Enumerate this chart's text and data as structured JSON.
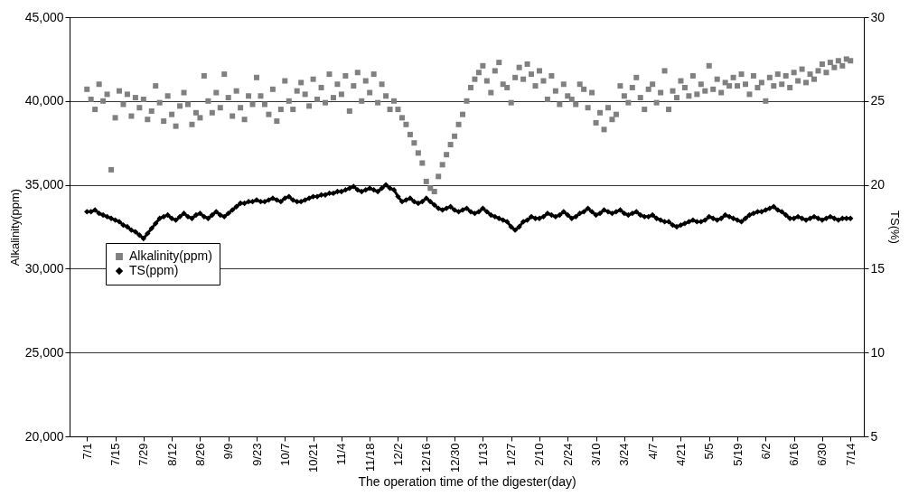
{
  "chart_data": {
    "type": "scatter",
    "xlabel": "The operation time of the digester(day)",
    "ylabel": "Alkalinity(ppm)",
    "y2label": "TS(%)",
    "categories": [
      "7/1",
      null,
      null,
      null,
      null,
      null,
      null,
      "7/15",
      null,
      null,
      null,
      null,
      null,
      null,
      "7/29",
      null,
      null,
      null,
      null,
      null,
      null,
      "8/12",
      null,
      null,
      null,
      null,
      null,
      null,
      "8/26",
      null,
      null,
      null,
      null,
      null,
      null,
      "9/9",
      null,
      null,
      null,
      null,
      null,
      null,
      "9/23",
      null,
      null,
      null,
      null,
      null,
      null,
      "10/7",
      null,
      null,
      null,
      null,
      null,
      null,
      "10/21",
      null,
      null,
      null,
      null,
      null,
      null,
      "11/4",
      null,
      null,
      null,
      null,
      null,
      null,
      "11/18",
      null,
      null,
      null,
      null,
      null,
      null,
      "12/2",
      null,
      null,
      null,
      null,
      null,
      null,
      "12/16",
      null,
      null,
      null,
      null,
      null,
      null,
      "12/30",
      null,
      null,
      null,
      null,
      null,
      null,
      "1/13",
      null,
      null,
      null,
      null,
      null,
      null,
      "1/27",
      null,
      null,
      null,
      null,
      null,
      null,
      "2/10",
      null,
      null,
      null,
      null,
      null,
      null,
      "2/24",
      null,
      null,
      null,
      null,
      null,
      null,
      "3/10",
      null,
      null,
      null,
      null,
      null,
      null,
      "3/24",
      null,
      null,
      null,
      null,
      null,
      null,
      "4/7",
      null,
      null,
      null,
      null,
      null,
      null,
      "4/21",
      null,
      null,
      null,
      null,
      null,
      null,
      "5/5",
      null,
      null,
      null,
      null,
      null,
      null,
      "5/19",
      null,
      null,
      null,
      null,
      null,
      null,
      "6/2",
      null,
      null,
      null,
      null,
      null,
      null,
      "6/16",
      null,
      null,
      null,
      null,
      null,
      null,
      "6/30",
      null,
      null,
      null,
      null,
      null,
      null,
      "7/14"
    ],
    "ylim": [
      20000,
      45000
    ],
    "yticks": [
      {
        "value": 20000,
        "label": "20,000"
      },
      {
        "value": 25000,
        "label": "25,000"
      },
      {
        "value": 30000,
        "label": "30,000"
      },
      {
        "value": 35000,
        "label": "35,000"
      },
      {
        "value": 40000,
        "label": "40,000"
      },
      {
        "value": 45000,
        "label": "45,000"
      }
    ],
    "y2lim": [
      5,
      30
    ],
    "y2ticks": [
      5,
      10,
      15,
      20,
      25,
      30
    ],
    "grid": "y",
    "legend": "left",
    "series": [
      {
        "name": "Alkalinity(ppm)",
        "marker": "square",
        "color": "#808080",
        "values": [
          40700,
          40100,
          39500,
          41000,
          40000,
          40400,
          35900,
          39000,
          40600,
          39800,
          40400,
          39100,
          40200,
          39600,
          40100,
          38900,
          39400,
          40900,
          39900,
          38800,
          40300,
          39200,
          38500,
          39700,
          40500,
          39800,
          38600,
          39300,
          39000,
          41500,
          40000,
          39300,
          40500,
          39600,
          41600,
          40200,
          39100,
          40600,
          39600,
          38900,
          40300,
          39800,
          41400,
          40300,
          39800,
          39200,
          40700,
          38800,
          39500,
          41200,
          40000,
          39500,
          40600,
          41100,
          40400,
          39700,
          41300,
          40100,
          40800,
          39900,
          41600,
          40200,
          41000,
          40400,
          41500,
          39400,
          40900,
          41700,
          40000,
          41200,
          40500,
          41600,
          39900,
          41000,
          40300,
          39500,
          40000,
          39500,
          39000,
          38600,
          38000,
          37500,
          36900,
          36300,
          35200,
          34800,
          34600,
          35500,
          36200,
          36800,
          37400,
          37900,
          38600,
          39200,
          40000,
          40800,
          41300,
          41700,
          42100,
          41200,
          40500,
          41800,
          42300,
          41000,
          40800,
          39900,
          41400,
          42000,
          41300,
          42200,
          41600,
          40900,
          41800,
          41200,
          40100,
          41500,
          40600,
          39800,
          41000,
          40300,
          40100,
          39800,
          41000,
          40700,
          39600,
          40500,
          38700,
          39300,
          38300,
          39600,
          38900,
          39200,
          40900,
          40300,
          39900,
          40800,
          41400,
          40200,
          39500,
          40700,
          41000,
          39900,
          40500,
          41800,
          39500,
          40600,
          40200,
          41200,
          40800,
          40300,
          41500,
          40400,
          41000,
          40600,
          42100,
          40700,
          41300,
          40500,
          41100,
          40900,
          41400,
          40900,
          41600,
          41000,
          40400,
          41500,
          40800,
          41100,
          40000,
          41400,
          40900,
          41600,
          41000,
          41500,
          40800,
          41700,
          41200,
          41900,
          41100,
          41600,
          41300,
          41800,
          42200,
          41700,
          42300,
          42000,
          42400,
          42100,
          42500,
          42400
        ]
      },
      {
        "name": "TS(ppm)",
        "type": "line",
        "axis": "y2",
        "marker": "diamond",
        "color": "#000000",
        "values": [
          18.4,
          18.4,
          18.5,
          18.3,
          18.2,
          18.1,
          18.0,
          17.9,
          17.8,
          17.6,
          17.5,
          17.3,
          17.2,
          17.0,
          16.8,
          17.1,
          17.4,
          17.7,
          18.0,
          18.1,
          18.2,
          18.0,
          17.9,
          18.1,
          18.3,
          18.1,
          18.0,
          18.2,
          18.3,
          18.1,
          18.0,
          18.2,
          18.4,
          18.2,
          18.1,
          18.3,
          18.5,
          18.7,
          18.9,
          18.9,
          19.0,
          19.0,
          19.1,
          19.0,
          19.0,
          19.1,
          19.2,
          19.1,
          19.0,
          19.2,
          19.3,
          19.1,
          19.0,
          19.0,
          19.1,
          19.2,
          19.3,
          19.3,
          19.4,
          19.4,
          19.5,
          19.5,
          19.6,
          19.6,
          19.7,
          19.8,
          19.9,
          19.7,
          19.6,
          19.7,
          19.8,
          19.7,
          19.6,
          19.8,
          20.0,
          19.8,
          19.7,
          19.3,
          19.0,
          19.1,
          19.2,
          19.0,
          18.9,
          19.0,
          19.2,
          19.0,
          18.8,
          18.6,
          18.5,
          18.6,
          18.7,
          18.5,
          18.4,
          18.5,
          18.6,
          18.4,
          18.3,
          18.4,
          18.6,
          18.4,
          18.2,
          18.1,
          18.0,
          17.9,
          17.8,
          17.5,
          17.3,
          17.5,
          17.8,
          17.9,
          18.1,
          18.0,
          18.0,
          18.1,
          18.3,
          18.2,
          18.1,
          18.2,
          18.4,
          18.2,
          18.0,
          18.1,
          18.3,
          18.4,
          18.6,
          18.4,
          18.2,
          18.3,
          18.5,
          18.4,
          18.3,
          18.4,
          18.5,
          18.3,
          18.2,
          18.3,
          18.4,
          18.2,
          18.1,
          18.1,
          18.2,
          18.0,
          17.9,
          17.8,
          17.8,
          17.6,
          17.5,
          17.6,
          17.7,
          17.8,
          17.9,
          17.8,
          17.8,
          17.9,
          18.1,
          18.0,
          17.9,
          18.0,
          18.2,
          18.1,
          18.0,
          17.9,
          17.8,
          18.0,
          18.2,
          18.3,
          18.4,
          18.4,
          18.5,
          18.6,
          18.7,
          18.5,
          18.4,
          18.2,
          18.0,
          18.0,
          18.1,
          18.0,
          17.9,
          18.0,
          18.1,
          18.0,
          17.9,
          18.0,
          18.1,
          18.0,
          17.9,
          18.0,
          18.0,
          18.0
        ]
      }
    ]
  }
}
